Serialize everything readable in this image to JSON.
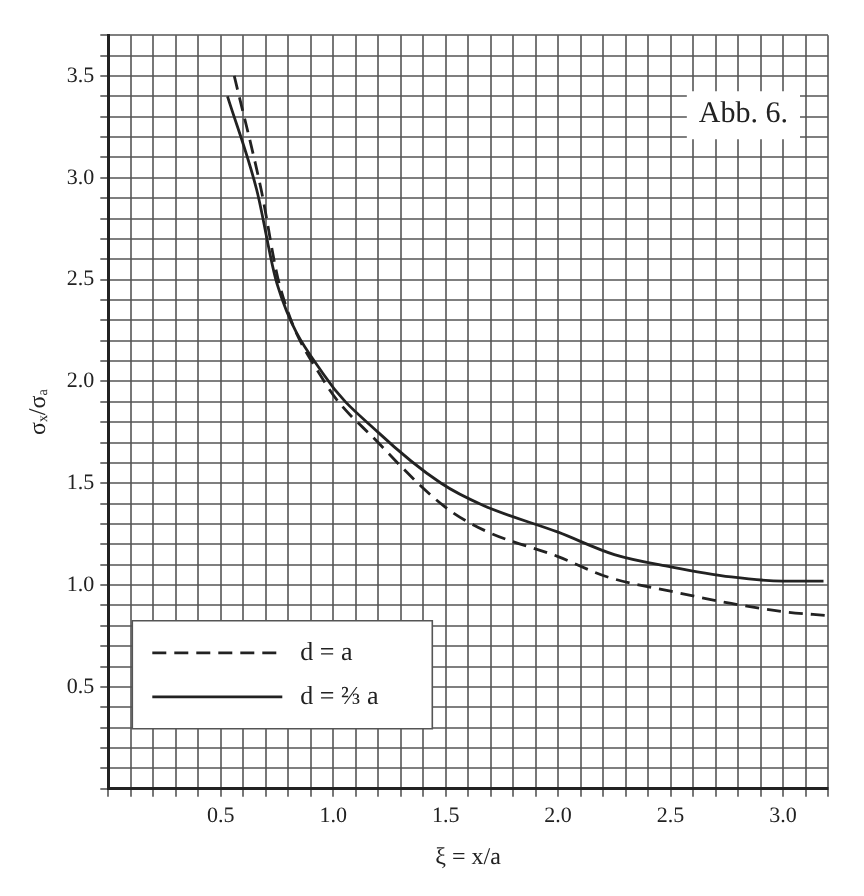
{
  "chart_data": {
    "type": "line",
    "title": "Abb. 6.",
    "xlabel": "ξ = x/a",
    "ylabel": "σₓ/σₐ",
    "series": [
      {
        "name": "d = a",
        "color": "#222222",
        "line_style": "dashed",
        "x": [
          0.56,
          0.68,
          0.76,
          0.96,
          1.2,
          1.49,
          1.67,
          2.0,
          2.22,
          2.5,
          2.77,
          3.0,
          3.2
        ],
        "values": [
          3.5,
          2.94,
          2.48,
          2.0,
          1.7,
          1.39,
          1.27,
          1.14,
          1.04,
          0.97,
          0.91,
          0.87,
          0.85
        ]
      },
      {
        "name": "d = ⅔ a",
        "color": "#222222",
        "line_style": "solid",
        "x": [
          0.53,
          0.66,
          0.75,
          0.96,
          1.2,
          1.48,
          1.67,
          2.0,
          2.25,
          2.5,
          2.77,
          3.0,
          3.18
        ],
        "values": [
          3.4,
          2.94,
          2.48,
          2.03,
          1.75,
          1.5,
          1.39,
          1.26,
          1.15,
          1.09,
          1.04,
          1.02,
          1.02
        ]
      }
    ],
    "xlim": [
      0,
      3.2
    ],
    "ylim": [
      0,
      3.7
    ],
    "xticks": [
      {
        "value": 0,
        "label": null
      },
      {
        "value": 0.1,
        "label": null
      },
      {
        "value": 0.2,
        "label": null
      },
      {
        "value": 0.3,
        "label": null
      },
      {
        "value": 0.4,
        "label": null
      },
      {
        "value": 0.5,
        "label": "0.5"
      },
      {
        "value": 0.6,
        "label": null
      },
      {
        "value": 0.7,
        "label": null
      },
      {
        "value": 0.8,
        "label": null
      },
      {
        "value": 0.9,
        "label": null
      },
      {
        "value": 1.0,
        "label": "1.0"
      },
      {
        "value": 1.1,
        "label": null
      },
      {
        "value": 1.2,
        "label": null
      },
      {
        "value": 1.3,
        "label": null
      },
      {
        "value": 1.4,
        "label": null
      },
      {
        "value": 1.5,
        "label": "1.5"
      },
      {
        "value": 1.6,
        "label": null
      },
      {
        "value": 1.7,
        "label": null
      },
      {
        "value": 1.8,
        "label": null
      },
      {
        "value": 1.9,
        "label": null
      },
      {
        "value": 2.0,
        "label": "2.0"
      },
      {
        "value": 2.1,
        "label": null
      },
      {
        "value": 2.2,
        "label": null
      },
      {
        "value": 2.3,
        "label": null
      },
      {
        "value": 2.4,
        "label": null
      },
      {
        "value": 2.5,
        "label": "2.5"
      },
      {
        "value": 2.6,
        "label": null
      },
      {
        "value": 2.7,
        "label": null
      },
      {
        "value": 2.8,
        "label": null
      },
      {
        "value": 2.9,
        "label": null
      },
      {
        "value": 3.0,
        "label": "3.0"
      },
      {
        "value": 3.1,
        "label": null
      },
      {
        "value": 3.2,
        "label": null
      }
    ],
    "yticks": [
      {
        "value": 0,
        "label": null
      },
      {
        "value": 0.1,
        "label": null
      },
      {
        "value": 0.2,
        "label": null
      },
      {
        "value": 0.3,
        "label": null
      },
      {
        "value": 0.4,
        "label": null
      },
      {
        "value": 0.5,
        "label": "0.5"
      },
      {
        "value": 0.6,
        "label": null
      },
      {
        "value": 0.7,
        "label": null
      },
      {
        "value": 0.8,
        "label": null
      },
      {
        "value": 0.9,
        "label": null
      },
      {
        "value": 1.0,
        "label": "1.0"
      },
      {
        "value": 1.1,
        "label": null
      },
      {
        "value": 1.2,
        "label": null
      },
      {
        "value": 1.3,
        "label": null
      },
      {
        "value": 1.4,
        "label": null
      },
      {
        "value": 1.5,
        "label": "1.5"
      },
      {
        "value": 1.6,
        "label": null
      },
      {
        "value": 1.7,
        "label": null
      },
      {
        "value": 1.8,
        "label": null
      },
      {
        "value": 1.9,
        "label": null
      },
      {
        "value": 2.0,
        "label": "2.0"
      },
      {
        "value": 2.1,
        "label": null
      },
      {
        "value": 2.2,
        "label": null
      },
      {
        "value": 2.3,
        "label": null
      },
      {
        "value": 2.4,
        "label": null
      },
      {
        "value": 2.5,
        "label": "2.5"
      },
      {
        "value": 2.6,
        "label": null
      },
      {
        "value": 2.7,
        "label": null
      },
      {
        "value": 2.8,
        "label": null
      },
      {
        "value": 2.9,
        "label": null
      },
      {
        "value": 3.0,
        "label": "3.0"
      },
      {
        "value": 3.1,
        "label": null
      },
      {
        "value": 3.2,
        "label": null
      },
      {
        "value": 3.3,
        "label": null
      },
      {
        "value": 3.4,
        "label": null
      },
      {
        "value": 3.5,
        "label": "3.5"
      },
      {
        "value": 3.6,
        "label": null
      },
      {
        "value": 3.7,
        "label": null
      }
    ],
    "grid": true,
    "legend": "bottom left",
    "marker": "none"
  }
}
